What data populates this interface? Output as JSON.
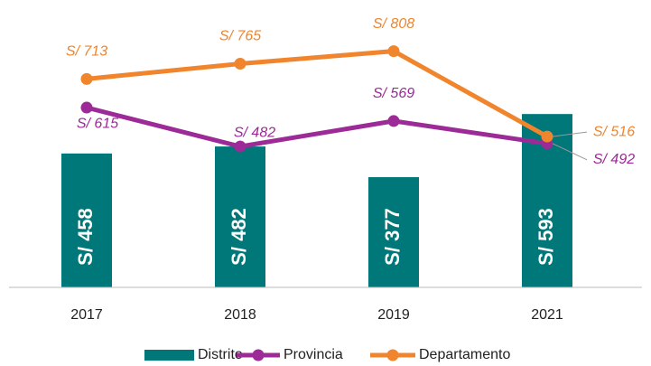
{
  "chart_data": {
    "type": "bar",
    "categories": [
      "2017",
      "2018",
      "2019",
      "2021"
    ],
    "ylim": [
      0,
      1000
    ],
    "series": [
      {
        "name": "Distrito",
        "type": "bar",
        "color": "#00787a",
        "values": [
          458,
          482,
          377,
          593
        ],
        "value_labels": [
          "S/ 458",
          "S/ 482",
          "S/ 377",
          "S/ 593"
        ]
      },
      {
        "name": "Provincia",
        "type": "line",
        "color": "#9c2a97",
        "values": [
          615,
          482,
          569,
          492
        ],
        "value_labels": [
          "S/ 615",
          "S/ 482",
          "S/ 569",
          "S/ 492"
        ]
      },
      {
        "name": "Departamento",
        "type": "line",
        "color": "#f0852d",
        "values": [
          713,
          765,
          808,
          516
        ],
        "value_labels": [
          "S/ 713",
          "S/ 765",
          "S/ 808",
          "S/ 516"
        ]
      }
    ]
  }
}
